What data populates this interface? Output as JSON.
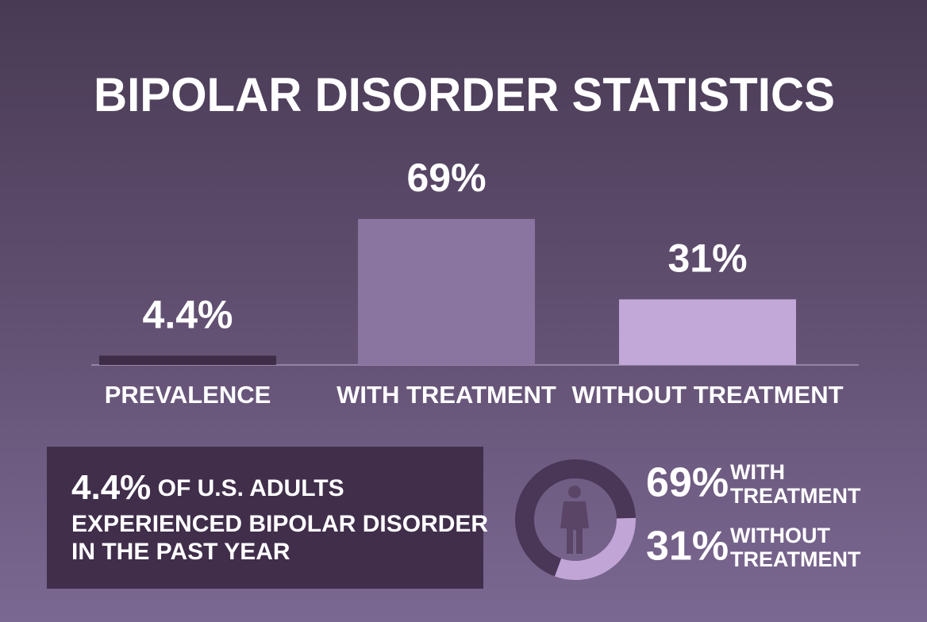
{
  "chart_data": [
    {
      "type": "bar",
      "title": "BIPOLAR DISORDER STATISTICS",
      "categories": [
        "PREVALENCE",
        "WITH TREATMENT",
        "WITHOUT TREATMENT"
      ],
      "values": [
        4.4,
        69,
        31
      ],
      "value_labels": [
        "4.4%",
        "69%",
        "31%"
      ],
      "colors": [
        "#3e2c49",
        "#8a74a0",
        "#c2a8d8"
      ],
      "annotation": [
        "4.4%",
        "OF U.S. ADULTS",
        "EXPERIENCED BIPOLAR DISORDER",
        "IN THE PAST YEAR"
      ]
    },
    {
      "type": "donut",
      "categories": [
        "WITH TREATMENT",
        "WITHOUT TREATMENT"
      ],
      "values": [
        69,
        31
      ],
      "value_labels": [
        "69%",
        "31%"
      ],
      "colors": [
        "#4a3656",
        "#c1a5d6"
      ]
    }
  ]
}
